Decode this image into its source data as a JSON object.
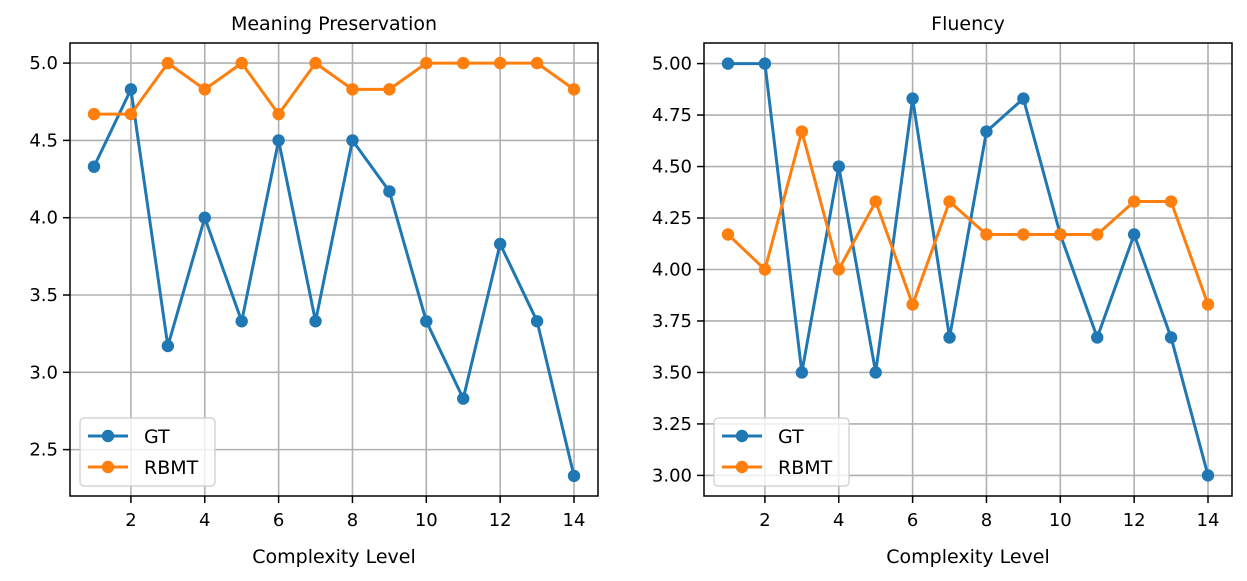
{
  "chart_data": [
    {
      "type": "line",
      "title": "Meaning Preservation",
      "xlabel": "Complexity Level",
      "ylabel": "",
      "x": [
        1,
        2,
        3,
        4,
        5,
        6,
        7,
        8,
        9,
        10,
        11,
        12,
        13,
        14
      ],
      "xlim": [
        0.35,
        14.65
      ],
      "ylim": [
        2.2,
        5.13
      ],
      "xticks": [
        2,
        4,
        6,
        8,
        10,
        12,
        14
      ],
      "yticks": [
        2.5,
        3.0,
        3.5,
        4.0,
        4.5,
        5.0
      ],
      "ytick_labels": [
        "2.5",
        "3.0",
        "3.5",
        "4.0",
        "4.5",
        "5.0"
      ],
      "grid": true,
      "legend_position": "lower-left",
      "series": [
        {
          "name": "GT",
          "color": "#1f77b4",
          "values": [
            4.33,
            4.83,
            3.17,
            4.0,
            3.33,
            4.5,
            3.33,
            4.5,
            4.17,
            3.33,
            2.83,
            3.83,
            3.33,
            2.33
          ]
        },
        {
          "name": "RBMT",
          "color": "#ff7f0e",
          "values": [
            4.67,
            4.67,
            5.0,
            4.83,
            5.0,
            4.67,
            5.0,
            4.83,
            4.83,
            5.0,
            5.0,
            5.0,
            5.0,
            4.83
          ]
        }
      ]
    },
    {
      "type": "line",
      "title": "Fluency",
      "xlabel": "Complexity Level",
      "ylabel": "",
      "x": [
        1,
        2,
        3,
        4,
        5,
        6,
        7,
        8,
        9,
        10,
        11,
        12,
        13,
        14
      ],
      "xlim": [
        0.35,
        14.65
      ],
      "ylim": [
        2.9,
        5.1
      ],
      "xticks": [
        2,
        4,
        6,
        8,
        10,
        12,
        14
      ],
      "yticks": [
        3.0,
        3.25,
        3.5,
        3.75,
        4.0,
        4.25,
        4.5,
        4.75,
        5.0
      ],
      "ytick_labels": [
        "3.00",
        "3.25",
        "3.50",
        "3.75",
        "4.00",
        "4.25",
        "4.50",
        "4.75",
        "5.00"
      ],
      "grid": true,
      "legend_position": "lower-left",
      "series": [
        {
          "name": "GT",
          "color": "#1f77b4",
          "values": [
            5.0,
            5.0,
            3.5,
            4.5,
            3.5,
            4.83,
            3.67,
            4.67,
            4.83,
            4.17,
            3.67,
            4.17,
            3.67,
            3.0
          ]
        },
        {
          "name": "RBMT",
          "color": "#ff7f0e",
          "values": [
            4.17,
            4.0,
            4.67,
            4.0,
            4.33,
            3.83,
            4.33,
            4.17,
            4.17,
            4.17,
            4.17,
            4.33,
            4.33,
            3.83
          ]
        }
      ]
    }
  ]
}
